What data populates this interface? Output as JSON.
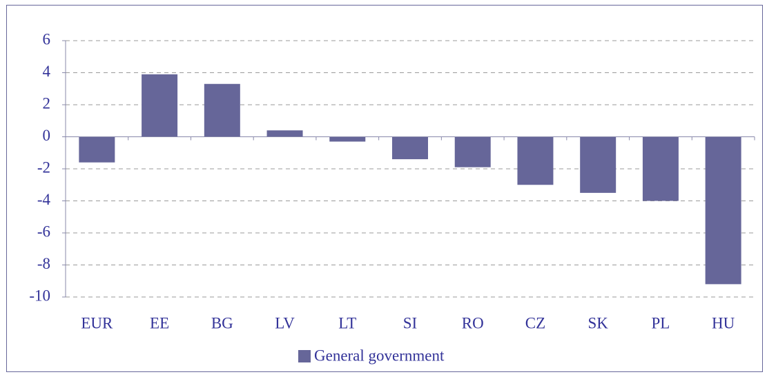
{
  "chart_data": {
    "type": "bar",
    "categories": [
      "EUR",
      "EE",
      "BG",
      "LV",
      "LT",
      "SI",
      "RO",
      "CZ",
      "SK",
      "PL",
      "HU"
    ],
    "series": [
      {
        "name": "General government",
        "color": "#666699",
        "values": [
          -1.6,
          3.9,
          3.3,
          0.4,
          -0.3,
          -1.4,
          -1.9,
          -3.0,
          -3.5,
          -4.0,
          -9.2
        ]
      }
    ],
    "ylim": [
      -10,
      6
    ],
    "yticks": [
      -10,
      -8,
      -6,
      -4,
      -2,
      0,
      2,
      4,
      6
    ],
    "grid": true,
    "legend": "bottom"
  }
}
